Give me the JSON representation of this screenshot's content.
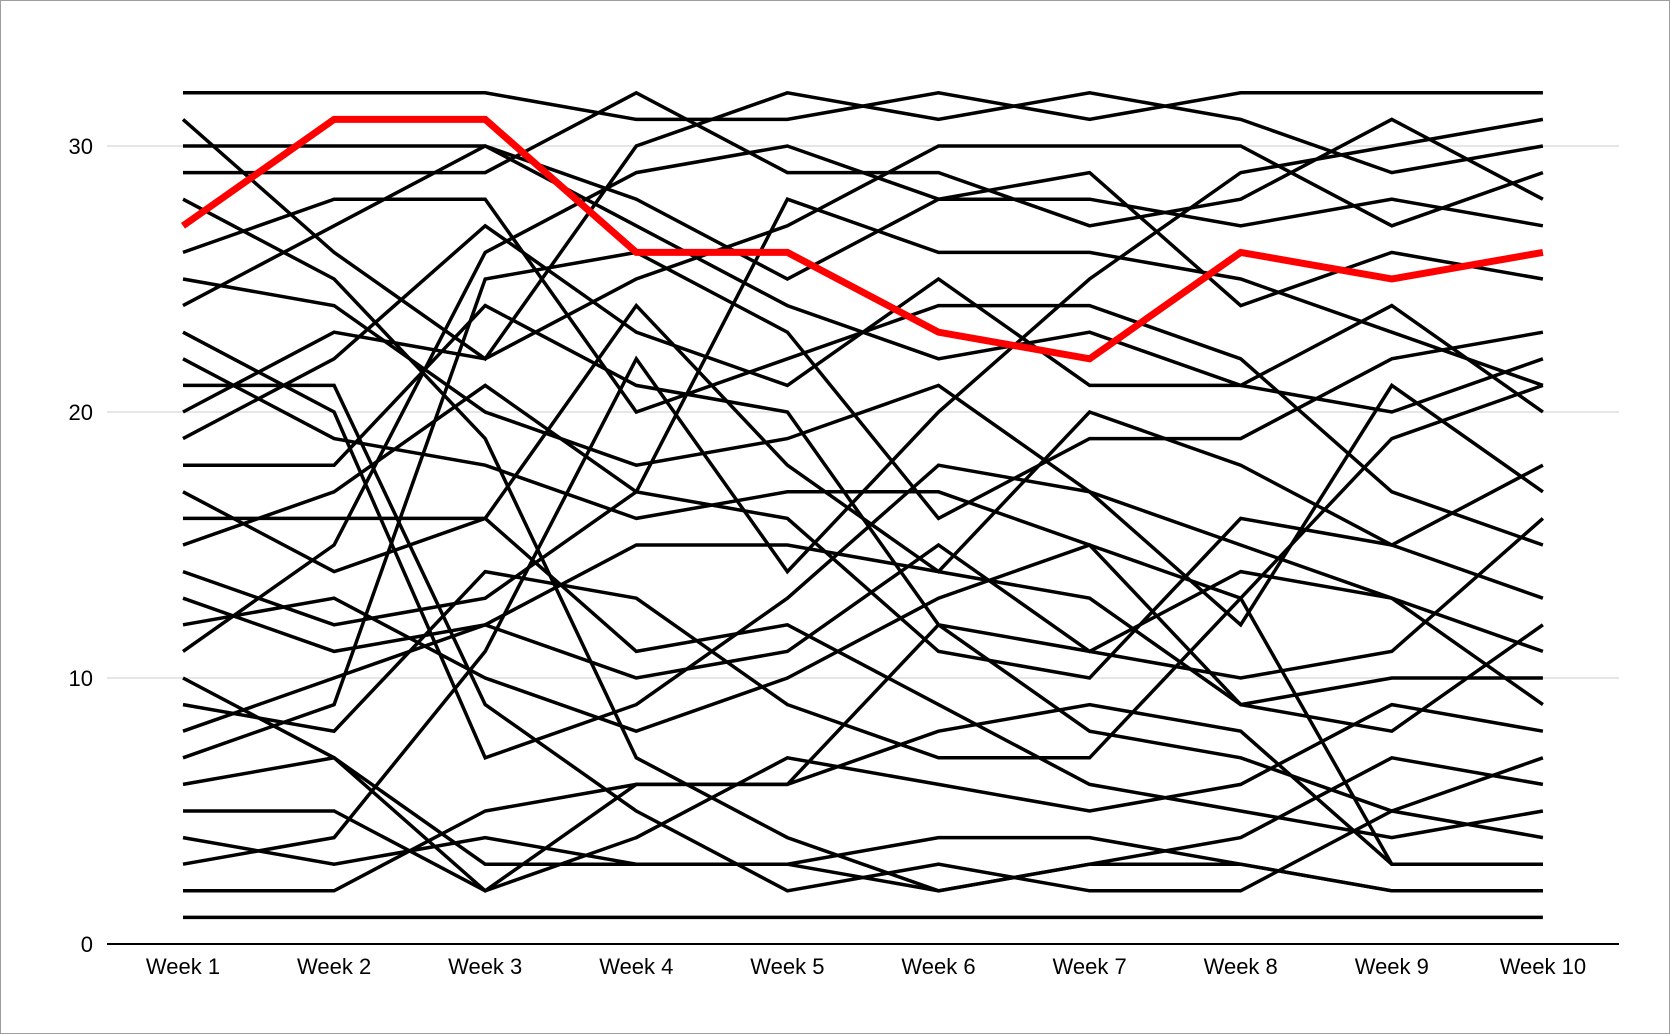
{
  "chart_data": {
    "type": "line",
    "title": "",
    "xlabel": "",
    "ylabel": "",
    "categories": [
      "Week 1",
      "Week 2",
      "Week 3",
      "Week 4",
      "Week 5",
      "Week 6",
      "Week 7",
      "Week 8",
      "Week 9",
      "Week 10"
    ],
    "y_ticks": [
      "0",
      "10",
      "20",
      "30"
    ],
    "ylim": [
      0,
      32
    ],
    "grid": "horizontal",
    "legend": "none",
    "colors": {
      "highlight": "#ff0000",
      "series": "#000000",
      "grid": "#cccccc",
      "axis": "#000000"
    },
    "highlight_series": {
      "values": [
        27,
        31,
        31,
        26,
        26,
        23,
        22,
        26,
        25,
        26
      ]
    },
    "series": [
      {
        "values": [
          32,
          32,
          32,
          31,
          31,
          32,
          31,
          32,
          32,
          32
        ]
      },
      {
        "values": [
          31,
          26,
          22,
          30,
          32,
          31,
          32,
          31,
          29,
          30
        ]
      },
      {
        "values": [
          30,
          30,
          30,
          27,
          24,
          22,
          23,
          21,
          20,
          22
        ]
      },
      {
        "values": [
          29,
          29,
          29,
          32,
          29,
          29,
          27,
          28,
          31,
          28
        ]
      },
      {
        "values": [
          28,
          25,
          19,
          7,
          4,
          2,
          3,
          3,
          2,
          2
        ]
      },
      {
        "values": [
          26,
          28,
          28,
          20,
          22,
          24,
          24,
          22,
          17,
          15
        ]
      },
      {
        "values": [
          25,
          24,
          20,
          18,
          19,
          21,
          17,
          15,
          13,
          11
        ]
      },
      {
        "values": [
          24,
          27,
          30,
          28,
          25,
          28,
          28,
          27,
          28,
          27
        ]
      },
      {
        "values": [
          23,
          20,
          7,
          9,
          13,
          18,
          17,
          12,
          21,
          17
        ]
      },
      {
        "values": [
          22,
          19,
          18,
          16,
          17,
          17,
          15,
          13,
          3,
          3
        ]
      },
      {
        "values": [
          21,
          21,
          9,
          5,
          2,
          3,
          2,
          2,
          5,
          7
        ]
      },
      {
        "values": [
          20,
          23,
          22,
          25,
          27,
          30,
          30,
          30,
          27,
          29
        ]
      },
      {
        "values": [
          19,
          22,
          27,
          23,
          21,
          25,
          21,
          21,
          24,
          20
        ]
      },
      {
        "values": [
          18,
          18,
          24,
          21,
          20,
          12,
          11,
          10,
          11,
          16
        ]
      },
      {
        "values": [
          17,
          14,
          16,
          24,
          18,
          14,
          20,
          18,
          15,
          13
        ]
      },
      {
        "values": [
          16,
          16,
          16,
          11,
          12,
          9,
          6,
          5,
          4,
          5
        ]
      },
      {
        "values": [
          15,
          17,
          21,
          17,
          16,
          11,
          10,
          16,
          15,
          18
        ]
      },
      {
        "values": [
          14,
          12,
          13,
          17,
          28,
          26,
          26,
          25,
          23,
          21
        ]
      },
      {
        "values": [
          13,
          11,
          12,
          15,
          15,
          14,
          13,
          9,
          10,
          10
        ]
      },
      {
        "values": [
          12,
          13,
          10,
          8,
          10,
          13,
          15,
          9,
          8,
          12
        ]
      },
      {
        "values": [
          11,
          15,
          26,
          29,
          30,
          28,
          29,
          24,
          26,
          25
        ]
      },
      {
        "values": [
          10,
          7,
          3,
          3,
          3,
          4,
          4,
          3,
          2,
          2
        ]
      },
      {
        "values": [
          9,
          8,
          14,
          13,
          9,
          7,
          7,
          13,
          19,
          21
        ]
      },
      {
        "values": [
          8,
          10,
          12,
          10,
          11,
          15,
          11,
          14,
          13,
          9
        ]
      },
      {
        "values": [
          7,
          9,
          25,
          26,
          23,
          16,
          19,
          19,
          22,
          23
        ]
      },
      {
        "values": [
          6,
          7,
          2,
          4,
          7,
          6,
          5,
          6,
          9,
          8
        ]
      },
      {
        "values": [
          5,
          5,
          2,
          6,
          6,
          12,
          8,
          7,
          5,
          4
        ]
      },
      {
        "values": [
          4,
          3,
          4,
          3,
          3,
          2,
          3,
          4,
          7,
          6
        ]
      },
      {
        "values": [
          3,
          4,
          11,
          22,
          14,
          20,
          25,
          29,
          30,
          31
        ]
      },
      {
        "values": [
          2,
          2,
          5,
          6,
          6,
          8,
          9,
          8,
          3,
          3
        ]
      },
      {
        "values": [
          1,
          1,
          1,
          1,
          1,
          1,
          1,
          1,
          1,
          1
        ]
      }
    ]
  }
}
